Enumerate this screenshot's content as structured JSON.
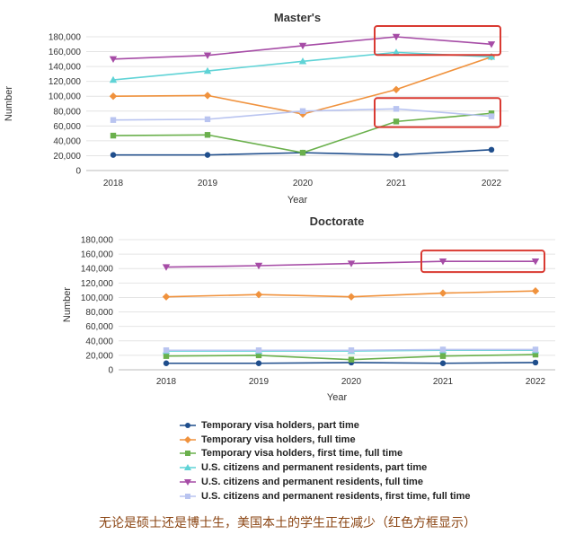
{
  "chart_data": [
    {
      "type": "line",
      "title": "Master's",
      "xlabel": "Year",
      "ylabel": "Number",
      "categories": [
        "2018",
        "2019",
        "2020",
        "2021",
        "2022"
      ],
      "ylim": [
        0,
        180000
      ],
      "yticks": [
        "0",
        "20,000",
        "40,000",
        "60,000",
        "80,000",
        "100,000",
        "120,000",
        "140,000",
        "160,000",
        "180,000"
      ],
      "grid": true,
      "series": [
        {
          "name": "Temporary visa holders, part time",
          "color": "#1f4e8c",
          "marker": "circle",
          "values": [
            21000,
            21000,
            24000,
            21000,
            28000
          ]
        },
        {
          "name": "Temporary visa holders, full time",
          "color": "#f0923d",
          "marker": "diamond",
          "values": [
            100000,
            101000,
            76000,
            109000,
            153000
          ]
        },
        {
          "name": "Temporary visa holders, first time, full time",
          "color": "#6ab04c",
          "marker": "square",
          "values": [
            47000,
            48000,
            24000,
            66000,
            77000
          ]
        },
        {
          "name": "U.S. citizens and permanent residents, part time",
          "color": "#5fd3d6",
          "marker": "triangle-up",
          "values": [
            122000,
            134000,
            147000,
            159000,
            153000
          ]
        },
        {
          "name": "U.S. citizens and permanent residents, full time",
          "color": "#a64ca6",
          "marker": "triangle-down",
          "values": [
            150000,
            155000,
            168000,
            180000,
            170000
          ]
        },
        {
          "name": "U.S. citizens and permanent residents, first time, full time",
          "color": "#b9c4f0",
          "marker": "square",
          "values": [
            68000,
            69000,
            80000,
            83000,
            73000
          ]
        }
      ],
      "highlight_boxes": [
        {
          "series": "U.S. citizens and permanent residents, full time",
          "from": "2021",
          "to": "2022"
        },
        {
          "series": "U.S. citizens and permanent residents, first time, full time",
          "from": "2021",
          "to": "2022"
        }
      ]
    },
    {
      "type": "line",
      "title": "Doctorate",
      "xlabel": "Year",
      "ylabel": "Number",
      "categories": [
        "2018",
        "2019",
        "2020",
        "2021",
        "2022"
      ],
      "ylim": [
        0,
        180000
      ],
      "yticks": [
        "0",
        "20,000",
        "40,000",
        "60,000",
        "80,000",
        "100,000",
        "120,000",
        "140,000",
        "160,000",
        "180,000"
      ],
      "grid": true,
      "series": [
        {
          "name": "Temporary visa holders, part time",
          "color": "#1f4e8c",
          "marker": "circle",
          "values": [
            9000,
            9000,
            10000,
            9000,
            10000
          ]
        },
        {
          "name": "Temporary visa holders, full time",
          "color": "#f0923d",
          "marker": "diamond",
          "values": [
            101000,
            104000,
            101000,
            106000,
            109000
          ]
        },
        {
          "name": "Temporary visa holders, first time, full time",
          "color": "#6ab04c",
          "marker": "square",
          "values": [
            19000,
            20000,
            14000,
            19000,
            21000
          ]
        },
        {
          "name": "U.S. citizens and permanent residents, part time",
          "color": "#5fd3d6",
          "marker": "triangle-up",
          "values": [
            26000,
            26000,
            26000,
            27000,
            27000
          ]
        },
        {
          "name": "U.S. citizens and permanent residents, full time",
          "color": "#a64ca6",
          "marker": "triangle-down",
          "values": [
            142000,
            144000,
            147000,
            150000,
            150000
          ]
        },
        {
          "name": "U.S. citizens and permanent residents, first time, full time",
          "color": "#b9c4f0",
          "marker": "square",
          "values": [
            27000,
            27000,
            27000,
            28000,
            28000
          ]
        }
      ],
      "highlight_boxes": [
        {
          "series": "U.S. citizens and permanent residents, full time",
          "from": "2021",
          "to": "2022"
        }
      ]
    }
  ],
  "legend": [
    {
      "label": "Temporary visa holders, part time",
      "color": "#1f4e8c",
      "marker": "circle"
    },
    {
      "label": "Temporary visa holders, full time",
      "color": "#f0923d",
      "marker": "diamond"
    },
    {
      "label": "Temporary visa holders, first time, full time",
      "color": "#6ab04c",
      "marker": "square"
    },
    {
      "label": "U.S. citizens and permanent residents, part time",
      "color": "#5fd3d6",
      "marker": "triangle-up"
    },
    {
      "label": "U.S. citizens and permanent residents, full time",
      "color": "#a64ca6",
      "marker": "triangle-down"
    },
    {
      "label": "U.S. citizens and permanent residents, first time, full time",
      "color": "#b9c4f0",
      "marker": "square"
    }
  ],
  "highlight_color": "#d93a32",
  "caption": "无论是硕士还是博士生，美国本土的学生正在减少（红色方框显示）"
}
